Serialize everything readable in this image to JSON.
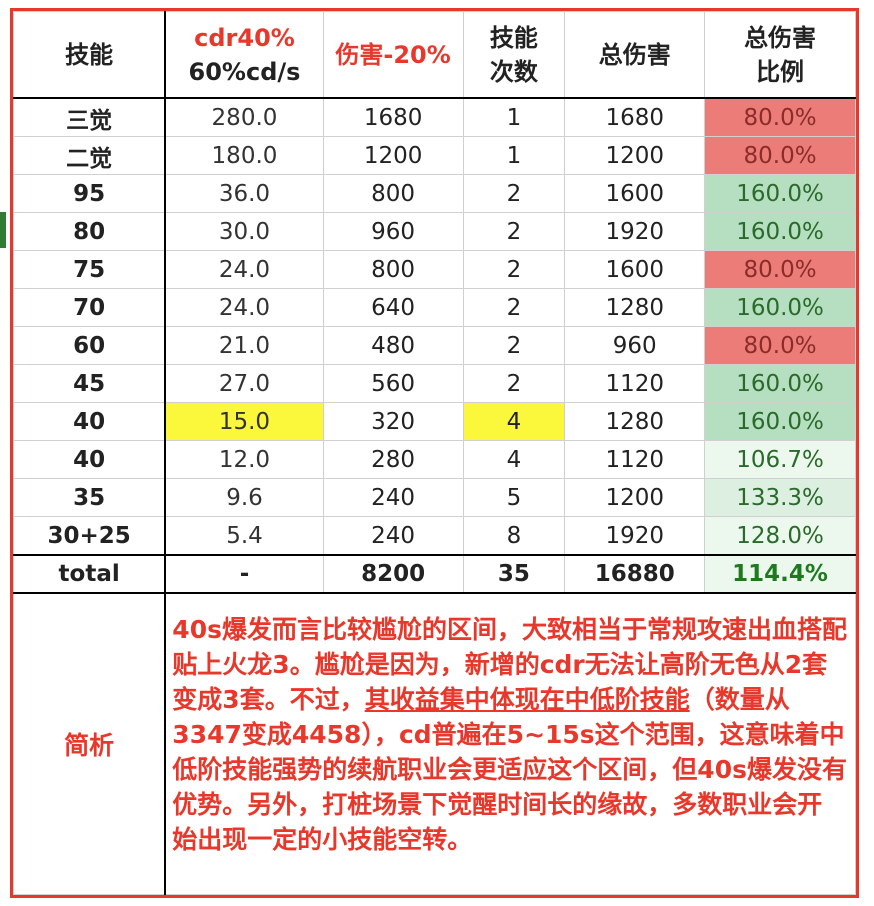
{
  "header": {
    "skill": "技能",
    "cdr_line1": "cdr40%",
    "cdr_line2": "60%cd/s",
    "damage": "伤害-20%",
    "count_line1": "技能",
    "count_line2": "次数",
    "total_damage": "总伤害",
    "ratio_line1": "总伤害",
    "ratio_line2": "比例"
  },
  "rows": [
    {
      "skill": "三觉",
      "cd": "280.0",
      "dmg": "1680",
      "count": "1",
      "total": "1680",
      "ratio": "80.0%",
      "ratio_style": "red"
    },
    {
      "skill": "二觉",
      "cd": "180.0",
      "dmg": "1200",
      "count": "1",
      "total": "1200",
      "ratio": "80.0%",
      "ratio_style": "red"
    },
    {
      "skill": "95",
      "cd": "36.0",
      "dmg": "800",
      "count": "2",
      "total": "1600",
      "ratio": "160.0%",
      "ratio_style": "green"
    },
    {
      "skill": "80",
      "cd": "30.0",
      "dmg": "960",
      "count": "2",
      "total": "1920",
      "ratio": "160.0%",
      "ratio_style": "green"
    },
    {
      "skill": "75",
      "cd": "24.0",
      "dmg": "800",
      "count": "2",
      "total": "1600",
      "ratio": "80.0%",
      "ratio_style": "red"
    },
    {
      "skill": "70",
      "cd": "24.0",
      "dmg": "640",
      "count": "2",
      "total": "1280",
      "ratio": "160.0%",
      "ratio_style": "green"
    },
    {
      "skill": "60",
      "cd": "21.0",
      "dmg": "480",
      "count": "2",
      "total": "960",
      "ratio": "80.0%",
      "ratio_style": "red"
    },
    {
      "skill": "45",
      "cd": "27.0",
      "dmg": "560",
      "count": "2",
      "total": "1120",
      "ratio": "160.0%",
      "ratio_style": "green"
    },
    {
      "skill": "40",
      "cd": "15.0",
      "dmg": "320",
      "count": "4",
      "total": "1280",
      "ratio": "160.0%",
      "ratio_style": "green"
    },
    {
      "skill": "40",
      "cd": "12.0",
      "dmg": "280",
      "count": "4",
      "total": "1120",
      "ratio": "106.7%",
      "ratio_style": "light"
    },
    {
      "skill": "35",
      "cd": "9.6",
      "dmg": "240",
      "count": "5",
      "total": "1200",
      "ratio": "133.3%",
      "ratio_style": "light2"
    },
    {
      "skill": "30+25",
      "cd": "5.4",
      "dmg": "240",
      "count": "8",
      "total": "1920",
      "ratio": "128.0%",
      "ratio_style": "light"
    }
  ],
  "total": {
    "label": "total",
    "cd": "-",
    "dmg": "8200",
    "count": "35",
    "total": "16880",
    "ratio": "114.4%"
  },
  "note": {
    "label": "简析",
    "text_before": "40s爆发而言比较尴尬的区间，大致相当于常规攻速出血搭配贴上火龙3。尴尬是因为，新增的cdr无法让高阶无色从2套变成3套。不过，",
    "text_underlined": "其收益集中体现在中低阶技能",
    "text_after": "（数量从3347变成4458），cd普遍在5~15s这个范围，这意味着中低阶技能强势的续航职业会更适应这个区间，但40s爆发没有优势。另外，打桩场景下觉醒时间长的缘故，多数职业会开始出现一定的小技能空转。"
  },
  "colors": {
    "accent_red": "#e8382b",
    "cell_red": "#ec7c77",
    "cell_green": "#b5dfc0",
    "highlight_yellow": "#fbf73a"
  }
}
